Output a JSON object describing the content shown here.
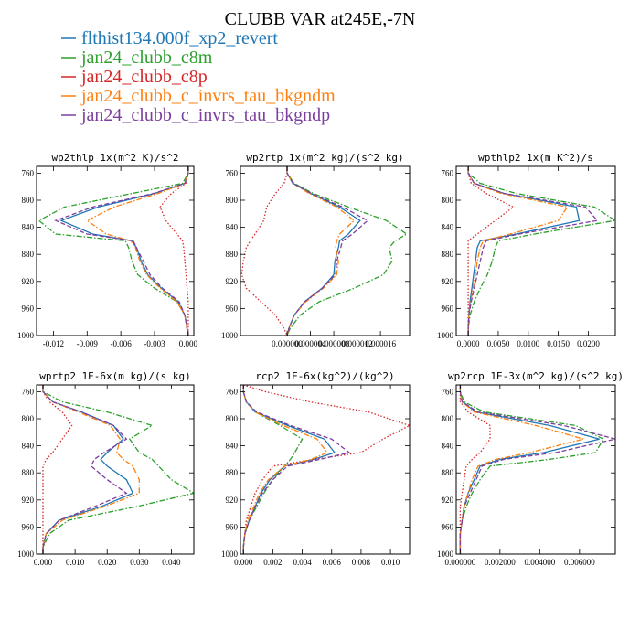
{
  "title": "CLUBB VAR at245E,-7N",
  "legend": [
    {
      "label": "flthist134.000f_xp2_revert",
      "color": "#1f77b4",
      "dash": "solid"
    },
    {
      "label": "jan24_clubb_c8m",
      "color": "#2ca02c",
      "dash": "dashdot"
    },
    {
      "label": "jan24_clubb_c8p",
      "color": "#d62728",
      "dash": "dot"
    },
    {
      "label": "jan24_clubb_c_invrs_tau_bkgndm",
      "color": "#ff7f0e",
      "dash": "dashdot"
    },
    {
      "label": "jan24_clubb_c_invrs_tau_bkgndp",
      "color": "#7b3f9e",
      "dash": "dash"
    }
  ],
  "chart_data": [
    {
      "type": "line",
      "title": "wp2thlp  1x(m^2 K)/s^2",
      "y": [
        750,
        760,
        775,
        790,
        810,
        830,
        850,
        860,
        870,
        890,
        910,
        930,
        950,
        970,
        990,
        1000
      ],
      "ylim": [
        1000,
        750
      ],
      "yticks": [
        760,
        800,
        840,
        880,
        920,
        960,
        1000
      ],
      "ytick_labels": [
        "760",
        "800",
        "840",
        "880",
        "920",
        "960",
        "1000"
      ],
      "xlim": [
        -0.0135,
        0.0005
      ],
      "xticks": [
        -0.012,
        -0.009,
        -0.006,
        -0.003,
        0.0
      ],
      "xtick_labels": [
        "-0.012",
        "-0.009",
        "-0.006",
        "-0.003",
        "0.000"
      ],
      "series": [
        {
          "name": "flthist134.000f_xp2_revert",
          "values": [
            0,
            0,
            -0.0003,
            -0.003,
            -0.008,
            -0.0113,
            -0.0085,
            -0.005,
            -0.0046,
            -0.0042,
            -0.0036,
            -0.0024,
            -0.0009,
            -0.0003,
            -0.0001,
            0
          ]
        },
        {
          "name": "jan24_clubb_c8m",
          "values": [
            0,
            0,
            -0.0005,
            -0.005,
            -0.011,
            -0.0133,
            -0.0118,
            -0.0056,
            -0.0053,
            -0.005,
            -0.0045,
            -0.003,
            -0.001,
            -0.0003,
            -0.0001,
            0
          ]
        },
        {
          "name": "jan24_clubb_c8p",
          "values": [
            0,
            0,
            -0.0002,
            -0.0015,
            -0.0025,
            -0.002,
            -0.001,
            -0.0005,
            -0.0004,
            -0.0003,
            -0.0002,
            -0.0001,
            0,
            0,
            0,
            0
          ]
        },
        {
          "name": "jan24_clubb_c_invrs_tau_bkgndm",
          "values": [
            0,
            0,
            -0.0003,
            -0.0027,
            -0.0066,
            -0.009,
            -0.0073,
            -0.0051,
            -0.0047,
            -0.0043,
            -0.0037,
            -0.0025,
            -0.001,
            -0.0003,
            -0.0001,
            0
          ]
        },
        {
          "name": "jan24_clubb_c_invrs_tau_bkgndp",
          "values": [
            0,
            0,
            -0.0003,
            -0.0031,
            -0.0085,
            -0.0118,
            -0.009,
            -0.0049,
            -0.0046,
            -0.004,
            -0.0034,
            -0.0023,
            -0.0008,
            -0.0003,
            -0.0001,
            0
          ]
        }
      ]
    },
    {
      "type": "line",
      "title": "wp2rtp  1x(m^2 kg)/(s^2 kg)",
      "y": [
        750,
        760,
        775,
        790,
        810,
        830,
        850,
        860,
        870,
        890,
        910,
        930,
        950,
        970,
        990,
        1000
      ],
      "ylim": [
        1000,
        750
      ],
      "yticks": [
        760,
        800,
        840,
        880,
        920,
        960,
        1000
      ],
      "ytick_labels": [
        "760",
        "800",
        "840",
        "880",
        "920",
        "960",
        "1000"
      ],
      "xlim": [
        -8e-06,
        2.1e-05
      ],
      "xticks": [
        0.0,
        4e-06,
        8e-06,
        1.2e-05,
        1.6e-05
      ],
      "xtick_labels": [
        "0.000000",
        "0.000004",
        "0.000008",
        "0.000012",
        "0.000016"
      ],
      "series": [
        {
          "name": "flthist134.000f_xp2_revert",
          "values": [
            0,
            0,
            1e-06,
            4e-06,
            9e-06,
            1.25e-05,
            1.05e-05,
            9e-06,
            8.8e-06,
            8.2e-06,
            8e-06,
            6e-06,
            3e-06,
            1.2e-06,
            3e-07,
            0
          ]
        },
        {
          "name": "jan24_clubb_c8m",
          "values": [
            0,
            0,
            1.2e-06,
            4.5e-06,
            1.05e-05,
            1.7e-05,
            2.05e-05,
            1.85e-05,
            1.75e-05,
            1.8e-05,
            1.65e-05,
            1.15e-05,
            5.5e-06,
            2.2e-06,
            5e-07,
            0
          ]
        },
        {
          "name": "jan24_clubb_c8p",
          "values": [
            0,
            0,
            -5e-07,
            -2e-06,
            -3.5e-06,
            -4e-06,
            -5.5e-06,
            -6.3e-06,
            -7e-06,
            -7.5e-06,
            -7.8e-06,
            -7e-06,
            -4.5e-06,
            -2e-06,
            -5e-07,
            0
          ]
        },
        {
          "name": "jan24_clubb_c_invrs_tau_bkgndm",
          "values": [
            0,
            0,
            1e-06,
            3.8e-06,
            8.5e-06,
            1.15e-05,
            9e-06,
            8.5e-06,
            8.3e-06,
            8.8e-06,
            8.5e-06,
            6.2e-06,
            3.2e-06,
            1.2e-06,
            3e-07,
            0
          ]
        },
        {
          "name": "jan24_clubb_c_invrs_tau_bkgndp",
          "values": [
            0,
            0,
            1e-06,
            4.2e-06,
            9.5e-06,
            1.38e-05,
            1.12e-05,
            9.5e-06,
            9.2e-06,
            8.5e-06,
            8.3e-06,
            6e-06,
            3e-06,
            1.2e-06,
            3e-07,
            0
          ]
        }
      ]
    },
    {
      "type": "line",
      "title": "wpthlp2  1x(m K^2)/s",
      "y": [
        750,
        760,
        775,
        790,
        810,
        830,
        850,
        860,
        870,
        890,
        910,
        930,
        950,
        970,
        990,
        1000
      ],
      "ylim": [
        1000,
        750
      ],
      "yticks": [
        760,
        800,
        840,
        880,
        920,
        960,
        1000
      ],
      "ytick_labels": [
        "760",
        "800",
        "840",
        "880",
        "920",
        "960",
        "1000"
      ],
      "xlim": [
        -0.002,
        0.0245
      ],
      "xticks": [
        0.0,
        0.005,
        0.01,
        0.015,
        0.02
      ],
      "xtick_labels": [
        "0.0000",
        "0.0050",
        "0.0100",
        "0.0150",
        "0.0200"
      ],
      "series": [
        {
          "name": "flthist134.000f_xp2_revert",
          "values": [
            0,
            0,
            0.001,
            0.006,
            0.018,
            0.0185,
            0.008,
            0.002,
            0.0015,
            0.0012,
            0.0009,
            0.0006,
            0.0003,
            0.0001,
            0,
            0
          ]
        },
        {
          "name": "jan24_clubb_c8m",
          "values": [
            0,
            0,
            0.002,
            0.008,
            0.021,
            0.0245,
            0.011,
            0.005,
            0.0045,
            0.004,
            0.0032,
            0.002,
            0.001,
            0.0003,
            0,
            0
          ]
        },
        {
          "name": "jan24_clubb_c8p",
          "values": [
            0,
            0,
            0.0005,
            0.003,
            0.0075,
            0.0045,
            0.0015,
            0,
            0,
            0,
            0,
            0,
            0,
            0,
            0,
            0
          ]
        },
        {
          "name": "jan24_clubb_c_invrs_tau_bkgndm",
          "values": [
            0,
            0,
            0.001,
            0.0055,
            0.0165,
            0.015,
            0.007,
            0.0025,
            0.002,
            0.0015,
            0.0012,
            0.0008,
            0.0004,
            0.0001,
            0,
            0
          ]
        },
        {
          "name": "jan24_clubb_c_invrs_tau_bkgndp",
          "values": [
            0,
            0,
            0.001,
            0.006,
            0.0195,
            0.0215,
            0.0085,
            0.003,
            0.0025,
            0.002,
            0.0015,
            0.001,
            0.0005,
            0.0001,
            0,
            0
          ]
        }
      ]
    },
    {
      "type": "line",
      "title": "wprtp2  1E-6x(m kg)/(s kg)",
      "y": [
        750,
        760,
        775,
        790,
        810,
        830,
        850,
        860,
        870,
        890,
        910,
        930,
        950,
        970,
        990,
        1000
      ],
      "ylim": [
        1000,
        750
      ],
      "yticks": [
        760,
        800,
        840,
        880,
        920,
        960,
        1000
      ],
      "ytick_labels": [
        "760",
        "800",
        "840",
        "880",
        "920",
        "960",
        "1000"
      ],
      "xlim": [
        -0.002,
        0.047
      ],
      "xticks": [
        0.0,
        0.01,
        0.02,
        0.03,
        0.04
      ],
      "xtick_labels": [
        "0.000",
        "0.010",
        "0.020",
        "0.030",
        "0.040"
      ],
      "series": [
        {
          "name": "flthist134.000f_xp2_revert",
          "values": [
            0,
            0,
            0.003,
            0.012,
            0.022,
            0.025,
            0.02,
            0.018,
            0.02,
            0.026,
            0.028,
            0.018,
            0.005,
            0.001,
            0,
            0
          ]
        },
        {
          "name": "jan24_clubb_c8m",
          "values": [
            0,
            0,
            0.006,
            0.02,
            0.034,
            0.027,
            0.03,
            0.034,
            0.036,
            0.04,
            0.047,
            0.029,
            0.008,
            0.002,
            0,
            0
          ]
        },
        {
          "name": "jan24_clubb_c8p",
          "values": [
            0,
            0,
            0.002,
            0.006,
            0.009,
            0.006,
            0.003,
            0.001,
            0,
            0,
            0,
            0,
            0,
            0,
            0,
            0
          ]
        },
        {
          "name": "jan24_clubb_c_invrs_tau_bkgndm",
          "values": [
            0,
            0,
            0.003,
            0.011,
            0.021,
            0.024,
            0.023,
            0.025,
            0.028,
            0.03,
            0.03,
            0.019,
            0.006,
            0.001,
            0,
            0
          ]
        },
        {
          "name": "jan24_clubb_c_invrs_tau_bkgndp",
          "values": [
            0,
            0,
            0.003,
            0.012,
            0.022,
            0.026,
            0.019,
            0.016,
            0.015,
            0.02,
            0.026,
            0.016,
            0.005,
            0.001,
            0,
            0
          ]
        }
      ]
    },
    {
      "type": "line",
      "title": "rcp2  1E-6x(kg^2)/(kg^2)",
      "y": [
        750,
        760,
        775,
        790,
        810,
        830,
        850,
        860,
        870,
        890,
        910,
        930,
        950,
        970,
        990,
        1000
      ],
      "ylim": [
        1000,
        750
      ],
      "yticks": [
        760,
        800,
        840,
        880,
        920,
        960,
        1000
      ],
      "ytick_labels": [
        "760",
        "800",
        "840",
        "880",
        "920",
        "960",
        "1000"
      ],
      "xlim": [
        -0.0002,
        0.0113
      ],
      "xticks": [
        0.0,
        0.002,
        0.004,
        0.006,
        0.008,
        0.01
      ],
      "xtick_labels": [
        "0.000",
        "0.002",
        "0.004",
        "0.006",
        "0.008",
        "0.010"
      ],
      "series": [
        {
          "name": "flthist134.000f_xp2_revert",
          "values": [
            0,
            0,
            0.0002,
            0.0008,
            0.003,
            0.0055,
            0.0062,
            0.0048,
            0.0028,
            0.0018,
            0.0012,
            0.0008,
            0.0004,
            0.0001,
            0,
            0
          ]
        },
        {
          "name": "jan24_clubb_c8m",
          "values": [
            0,
            0,
            0.0002,
            0.0008,
            0.0025,
            0.004,
            0.0035,
            0.0032,
            0.0028,
            0.002,
            0.0014,
            0.0009,
            0.0004,
            0.0001,
            0,
            0
          ]
        },
        {
          "name": "jan24_clubb_c8p",
          "values": [
            0,
            0.0015,
            0.0045,
            0.0085,
            0.0113,
            0.0095,
            0.008,
            0.0048,
            0.002,
            0.0013,
            0.0008,
            0.0005,
            0.0002,
            0.0001,
            0,
            0
          ]
        },
        {
          "name": "jan24_clubb_c_invrs_tau_bkgndm",
          "values": [
            0,
            0,
            0.0002,
            0.0008,
            0.0027,
            0.005,
            0.0057,
            0.0046,
            0.0028,
            0.0017,
            0.0011,
            0.0007,
            0.0003,
            0.0001,
            0,
            0
          ]
        },
        {
          "name": "jan24_clubb_c_invrs_tau_bkgndp",
          "values": [
            0,
            0,
            0.0002,
            0.0009,
            0.0032,
            0.006,
            0.0072,
            0.0052,
            0.003,
            0.002,
            0.0013,
            0.0008,
            0.0004,
            0.0001,
            0,
            0
          ]
        }
      ]
    },
    {
      "type": "line",
      "title": "wp2rcp  1E-3x(m^2 kg)/(s^2 kg)",
      "y": [
        750,
        760,
        775,
        790,
        810,
        830,
        850,
        860,
        870,
        890,
        910,
        930,
        950,
        970,
        990,
        1000
      ],
      "ylim": [
        1000,
        750
      ],
      "yticks": [
        760,
        800,
        840,
        880,
        920,
        960,
        1000
      ],
      "ytick_labels": [
        "760",
        "800",
        "840",
        "880",
        "920",
        "960",
        "1000"
      ],
      "xlim": [
        -0.0002,
        0.0078
      ],
      "xticks": [
        0.0,
        0.002,
        0.004,
        0.006
      ],
      "xtick_labels": [
        "0.000000",
        "0.002000",
        "0.004000",
        "0.006000"
      ],
      "series": [
        {
          "name": "flthist134.000f_xp2_revert",
          "values": [
            0,
            0,
            0.0001,
            0.0008,
            0.0045,
            0.007,
            0.0042,
            0.002,
            0.001,
            0.0007,
            0.0004,
            0.0002,
            0.0001,
            0,
            0,
            0
          ]
        },
        {
          "name": "jan24_clubb_c8m",
          "values": [
            0,
            0,
            0.0002,
            0.0012,
            0.0058,
            0.0072,
            0.0068,
            0.0045,
            0.0015,
            0.001,
            0.0006,
            0.0003,
            0.0001,
            0,
            0,
            0
          ]
        },
        {
          "name": "jan24_clubb_c8p",
          "values": [
            0,
            0,
            0,
            0.0004,
            0.0015,
            0.0015,
            0.001,
            0.0006,
            0.0003,
            0.0002,
            0.0001,
            0,
            0,
            0,
            0,
            0
          ]
        },
        {
          "name": "jan24_clubb_c_invrs_tau_bkgndm",
          "values": [
            0,
            0,
            0.0001,
            0.0007,
            0.0038,
            0.0062,
            0.0035,
            0.0018,
            0.0009,
            0.0006,
            0.0004,
            0.0002,
            0.0001,
            0,
            0,
            0
          ]
        },
        {
          "name": "jan24_clubb_c_invrs_tau_bkgndp",
          "values": [
            0,
            0,
            0.0001,
            0.0009,
            0.0052,
            0.0078,
            0.0048,
            0.0022,
            0.0011,
            0.0008,
            0.0005,
            0.0002,
            0.0001,
            0,
            0,
            0
          ]
        }
      ]
    }
  ]
}
